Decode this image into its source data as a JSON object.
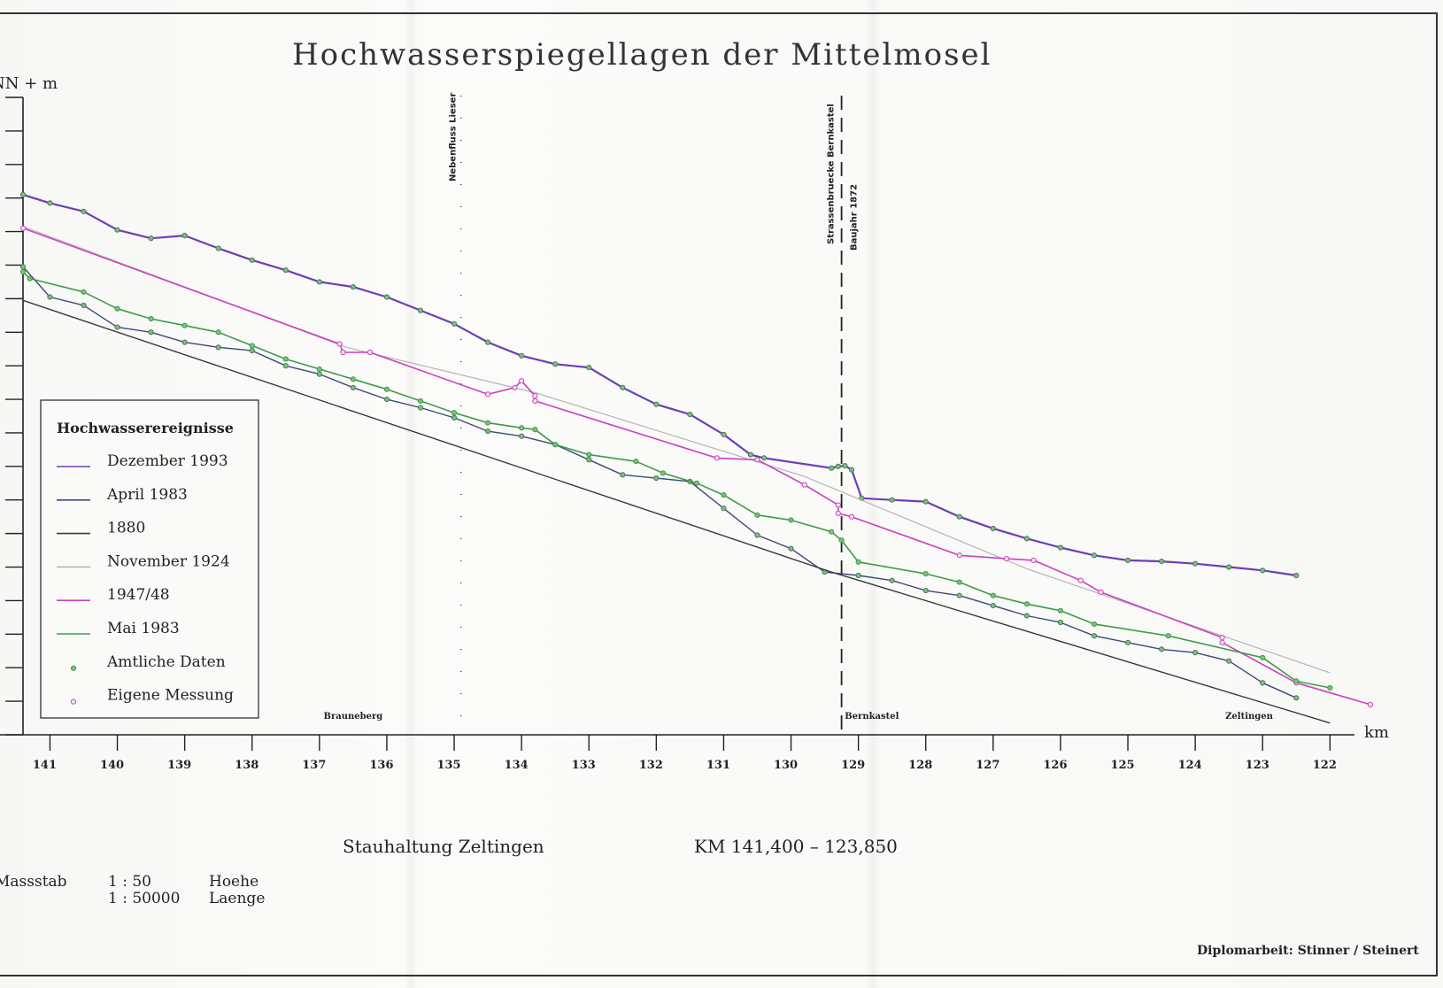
{
  "chart_data": {
    "type": "line",
    "title": "Hochwasserspiegellagen der Mittelmosel",
    "ylabel": "NN + m",
    "xlabel": "km",
    "x_reversed": true,
    "xlim": [
      141.4,
      121.4
    ],
    "ylim": [
      0,
      19
    ],
    "y_tick_labels_shown": false,
    "x_ticks": [
      141,
      140,
      139,
      138,
      137,
      136,
      135,
      134,
      133,
      132,
      131,
      130,
      129,
      128,
      127,
      126,
      125,
      124,
      123,
      122
    ],
    "x_tick_labels": [
      "141",
      "140",
      "139",
      "138",
      "137",
      "136",
      "135",
      "134",
      "133",
      "132",
      "131",
      "130",
      "129",
      "128",
      "127",
      "126",
      "125",
      "124",
      "123",
      "122"
    ],
    "legend": {
      "title": "Hochwasserereignisse",
      "placement": "left",
      "entries": [
        {
          "label": "Dezember 1993",
          "color": "#6a3fb8",
          "kind": "line"
        },
        {
          "label": "April 1983",
          "color": "#3a4a7a",
          "kind": "line"
        },
        {
          "label": "1880",
          "color": "#3a3a3a",
          "kind": "line"
        },
        {
          "label": "November 1924",
          "color": "#b5b5b5",
          "kind": "line"
        },
        {
          "label": "1947/48",
          "color": "#cc3fbf",
          "kind": "line"
        },
        {
          "label": "Mai 1983",
          "color": "#3f9b48",
          "kind": "line"
        },
        {
          "label": "Amtliche Daten",
          "color": "#3f9b48",
          "kind": "marker"
        },
        {
          "label": "Eigene Messung",
          "color": "#cc3fbf",
          "kind": "marker"
        }
      ]
    },
    "annotations": {
      "tributary": {
        "label": "Nebenfluss Lieser",
        "x": 134.9
      },
      "bridge": {
        "label": "Strassenbruecke Bernkastel",
        "label2": "Baujahr 1872",
        "x": 129.25
      },
      "places": [
        {
          "label": "Brauneberg",
          "x": 136.5
        },
        {
          "label": "Bernkastel",
          "x": 128.8
        },
        {
          "label": "Zeltingen",
          "x": 123.2
        }
      ]
    },
    "series": [
      {
        "name": "Dezember 1993",
        "color": "#6a3fb8",
        "marker": "amtlich",
        "x": [
          141.4,
          141.0,
          140.5,
          140.0,
          139.5,
          139.0,
          138.5,
          138.0,
          137.5,
          137.0,
          136.5,
          136.0,
          135.5,
          135.0,
          134.5,
          134.0,
          133.5,
          133.0,
          132.5,
          132.0,
          131.5,
          131.0,
          130.6,
          130.4,
          129.4,
          129.3,
          129.2,
          129.1,
          128.95,
          128.5,
          128.0,
          127.5,
          127.0,
          126.5,
          126.0,
          125.5,
          125.0,
          124.5,
          124.0,
          123.5,
          123.0,
          122.5
        ],
        "y": [
          16.1,
          15.85,
          15.6,
          15.05,
          14.8,
          14.88,
          14.5,
          14.15,
          13.85,
          13.5,
          13.35,
          13.05,
          12.65,
          12.25,
          11.7,
          11.3,
          11.05,
          10.95,
          10.35,
          9.85,
          9.55,
          8.95,
          8.35,
          8.25,
          7.95,
          8.0,
          8.02,
          7.9,
          7.05,
          7.0,
          6.95,
          6.5,
          6.15,
          5.85,
          5.58,
          5.35,
          5.2,
          5.17,
          5.1,
          5.0,
          4.9,
          4.75
        ]
      },
      {
        "name": "April 1983",
        "color": "#3a4a7a",
        "marker": "amtlich",
        "x": [
          141.4,
          141.0,
          140.5,
          140.0,
          139.5,
          139.0,
          138.5,
          138.0,
          137.5,
          137.0,
          136.5,
          136.0,
          135.5,
          135.0,
          134.5,
          134.0,
          133.5,
          133.0,
          132.5,
          132.0,
          131.5,
          131.0,
          130.5,
          130.0,
          129.5,
          129.0,
          128.5,
          128.0,
          127.5,
          127.0,
          126.5,
          126.0,
          125.5,
          125.0,
          124.5,
          124.0,
          123.5,
          123.0,
          122.5
        ],
        "y": [
          13.95,
          13.05,
          12.8,
          12.15,
          12.0,
          11.7,
          11.55,
          11.45,
          11.0,
          10.75,
          10.35,
          10.0,
          9.75,
          9.45,
          9.05,
          8.9,
          8.65,
          8.2,
          7.75,
          7.65,
          7.55,
          6.75,
          5.95,
          5.55,
          4.85,
          4.75,
          4.6,
          4.3,
          4.15,
          3.85,
          3.55,
          3.35,
          2.95,
          2.75,
          2.55,
          2.45,
          2.2,
          1.55,
          1.1
        ]
      },
      {
        "name": "1880",
        "color": "#3a3a3a",
        "marker": "none",
        "x": [
          141.4,
          129.4,
          122.0
        ],
        "y": [
          12.95,
          4.85,
          0.35
        ]
      },
      {
        "name": "November 1924",
        "color": "#b5b5b5",
        "marker": "none",
        "x": [
          141.4,
          136.6,
          133.8,
          129.8,
          126.5,
          122.0
        ],
        "y": [
          15.15,
          11.55,
          10.2,
          7.7,
          4.95,
          1.85
        ]
      },
      {
        "name": "1947/48",
        "color": "#cc3fbf",
        "marker": "eigen",
        "x": [
          141.4,
          136.7,
          136.65,
          136.25,
          134.5,
          134.1,
          134.0,
          133.8,
          133.8,
          131.1,
          130.5,
          129.8,
          129.3,
          129.3,
          129.1,
          127.5,
          126.8,
          126.4,
          125.7,
          125.4,
          123.6,
          123.6,
          122.5,
          121.4
        ],
        "y": [
          15.1,
          11.65,
          11.4,
          11.4,
          10.15,
          10.35,
          10.55,
          10.1,
          9.95,
          8.25,
          8.2,
          7.45,
          6.85,
          6.6,
          6.5,
          5.35,
          5.25,
          5.2,
          4.6,
          4.25,
          2.9,
          2.75,
          1.55,
          0.9
        ]
      },
      {
        "name": "Mai 1983",
        "color": "#3f9b48",
        "marker": "amtlich",
        "x": [
          141.4,
          141.3,
          140.5,
          140.0,
          139.5,
          139.0,
          138.5,
          138.0,
          137.5,
          137.0,
          136.5,
          136.0,
          135.5,
          135.0,
          134.5,
          134.0,
          133.8,
          133.5,
          133.0,
          132.3,
          131.9,
          131.4,
          131.0,
          130.5,
          130.0,
          129.4,
          129.25,
          129.0,
          128.0,
          127.5,
          127.0,
          126.5,
          126.0,
          125.5,
          124.4,
          123.0,
          122.5,
          122.0
        ],
        "y": [
          13.8,
          13.6,
          13.2,
          12.7,
          12.4,
          12.2,
          12.0,
          11.6,
          11.2,
          10.9,
          10.6,
          10.3,
          9.95,
          9.6,
          9.3,
          9.15,
          9.1,
          8.65,
          8.35,
          8.15,
          7.8,
          7.5,
          7.15,
          6.55,
          6.4,
          6.05,
          5.8,
          5.15,
          4.8,
          4.55,
          4.15,
          3.9,
          3.7,
          3.3,
          2.95,
          2.3,
          1.6,
          1.4
        ]
      }
    ]
  },
  "footer": {
    "project_label": "Stauhaltung Zeltingen",
    "range_label": "KM 141,400 – 123,850",
    "scale_title": "Massstab",
    "scale_h_ratio": "1 : 50",
    "scale_h_label": "Hoehe",
    "scale_l_ratio": "1 : 50000",
    "scale_l_label": "Laenge",
    "credit": "Diplomarbeit: Stinner / Steinert"
  }
}
